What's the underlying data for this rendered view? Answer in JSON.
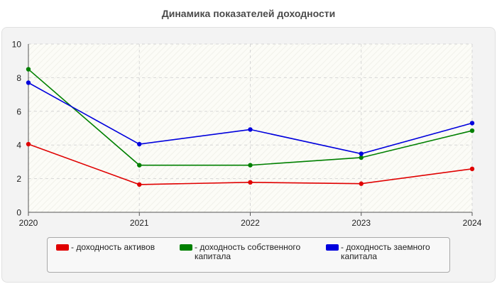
{
  "chart_data": {
    "type": "line",
    "title": "Динамика показателей доходности",
    "x": [
      "2020",
      "2021",
      "2022",
      "2023",
      "2024"
    ],
    "ylim": [
      0,
      10
    ],
    "yticks": [
      "0",
      "2",
      "4",
      "6",
      "8",
      "10"
    ],
    "grid": true,
    "legend_position": "bottom",
    "series": [
      {
        "name": "доходность активов",
        "color": "#e00000",
        "values": [
          4.05,
          1.65,
          1.78,
          1.7,
          2.58
        ]
      },
      {
        "name": "доходность собственного капитала",
        "color": "#008000",
        "values": [
          8.5,
          2.8,
          2.8,
          3.25,
          4.85
        ]
      },
      {
        "name": "доходность заемного капитала",
        "color": "#0000dd",
        "values": [
          7.7,
          4.05,
          4.92,
          3.48,
          5.3
        ]
      }
    ]
  }
}
